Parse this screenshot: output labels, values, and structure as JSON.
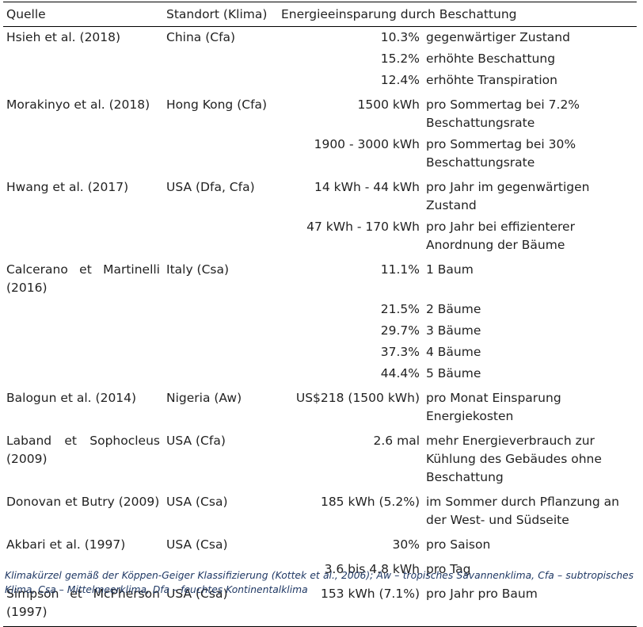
{
  "headers": [
    "Quelle",
    "Standort (Klima)",
    "Energieeinsparung durch Beschattung"
  ],
  "rows": [
    {
      "source": "Hsieh et al. (2018)",
      "location": "China (Cfa)",
      "value": "10.3%",
      "desc": "gegenwärtiger Zustand"
    },
    {
      "source": "",
      "location": "",
      "value": "15.2%",
      "desc": "erhöhte Beschattung"
    },
    {
      "source": "",
      "location": "",
      "value": "12.4%",
      "desc": "erhöhte Transpiration"
    },
    {
      "source": "Morakinyo et al. (2018)",
      "location": "Hong Kong (Cfa)",
      "value": "1500 kWh",
      "desc": "pro Sommertag bei 7.2% Beschattungsrate"
    },
    {
      "source": "",
      "location": "",
      "value": "1900 - 3000 kWh",
      "desc": "pro Sommertag bei 30% Beschattungsrate"
    },
    {
      "source": "Hwang et al. (2017)",
      "location": "USA (Dfa, Cfa)",
      "value": "14 kWh - 44 kWh",
      "desc": "pro Jahr im gegenwärtigen Zustand"
    },
    {
      "source": "",
      "location": "",
      "value": "47 kWh -  170 kWh",
      "desc": "pro Jahr bei effizienterer Anordnung der Bäume"
    },
    {
      "source": "Calcerano et Martinelli (2016)",
      "location": "Italy (Csa)",
      "value": "11.1%",
      "desc": "1 Baum"
    },
    {
      "source": "",
      "location": "",
      "value": "21.5%",
      "desc": "2 Bäume"
    },
    {
      "source": "",
      "location": "",
      "value": "29.7%",
      "desc": "3 Bäume"
    },
    {
      "source": "",
      "location": "",
      "value": "37.3%",
      "desc": "4 Bäume"
    },
    {
      "source": "",
      "location": "",
      "value": "44.4%",
      "desc": "5 Bäume"
    },
    {
      "source": "Balogun et al. (2014)",
      "location": "Nigeria (Aw)",
      "value": "US$218 (1500 kWh)",
      "desc": "pro Monat Einsparung Energiekosten"
    },
    {
      "source": "Laband et Sophocleus (2009)",
      "location": "USA (Cfa)",
      "value": "2.6 mal",
      "desc": "mehr Energieverbrauch zur Kühlung des Gebäudes ohne Beschattung"
    },
    {
      "source": "Donovan et Butry (2009)",
      "location": "USA (Csa)",
      "value": "185 kWh (5.2%)",
      "desc": "im Sommer durch Pflanzung an der West- und Südseite"
    },
    {
      "source": "Akbari et al. (1997)",
      "location": "USA (Csa)",
      "value": "30%",
      "desc": "pro Saison"
    },
    {
      "source": "",
      "location": "",
      "value": "3.6 bis 4.8 kWh",
      "desc": "pro Tag"
    },
    {
      "source": "Simpson et McPherson (1997)",
      "location": "USA (Csa)",
      "value": "153 kWh (7.1%)",
      "desc": "pro Jahr pro Baum"
    }
  ],
  "footnote": "Klimakürzel gemäß der Köppen-Geiger Klassifizierung (Kottek et al., 2006); Aw – tropisches Savannenklima, Cfa – subtropisches Klima, Csa – Mittelmeerklima, Dfa – feuchtes Kontinentalklima"
}
